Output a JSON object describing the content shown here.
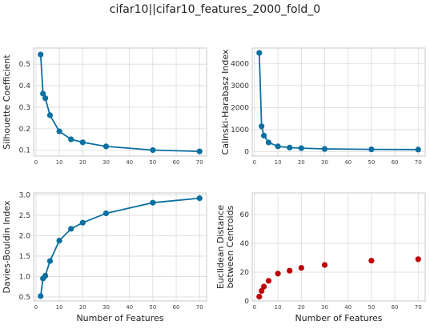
{
  "figure": {
    "title": "cifar10||cifar10_features_2000_fold_0"
  },
  "colors": {
    "line": "#0b6fa0",
    "scatter": "#c00000",
    "grid": "#d9d9d9",
    "spine": "#c8c8c8"
  },
  "chart_data": [
    {
      "type": "line",
      "ylabel": "Silhouette Coefficient",
      "xlabel": "",
      "x": [
        2,
        3,
        4,
        6,
        10,
        15,
        20,
        30,
        50,
        70
      ],
      "values": [
        0.545,
        0.363,
        0.342,
        0.263,
        0.188,
        0.151,
        0.137,
        0.118,
        0.101,
        0.095
      ],
      "xlim": [
        -1,
        73
      ],
      "ylim": [
        0.073,
        0.575
      ],
      "xticks": [
        0,
        10,
        20,
        30,
        40,
        50,
        60,
        70
      ],
      "yticks": [
        0.1,
        0.2,
        0.3,
        0.4,
        0.5
      ],
      "ytick_labels": [
        "0.1",
        "0.2",
        "0.3",
        "0.4",
        "0.5"
      ],
      "grid": true
    },
    {
      "type": "line",
      "ylabel": "Calinski-Harabasz Index",
      "xlabel": "",
      "x": [
        2,
        3,
        4,
        6,
        10,
        15,
        20,
        30,
        50,
        70
      ],
      "values": [
        4480,
        1150,
        730,
        420,
        240,
        185,
        160,
        125,
        105,
        95
      ],
      "xlim": [
        -1,
        73
      ],
      "ylim": [
        -200,
        4700
      ],
      "xticks": [
        0,
        10,
        20,
        30,
        40,
        50,
        60,
        70
      ],
      "yticks": [
        0,
        1000,
        2000,
        3000,
        4000
      ],
      "ytick_labels": [
        "0",
        "1000",
        "2000",
        "3000",
        "4000"
      ],
      "grid": true
    },
    {
      "type": "line",
      "ylabel": "Davies-Bouldin Index",
      "xlabel": "Number of Features",
      "x": [
        2,
        3,
        4,
        6,
        10,
        15,
        20,
        30,
        50,
        70
      ],
      "values": [
        0.52,
        0.95,
        1.02,
        1.38,
        1.88,
        2.17,
        2.32,
        2.55,
        2.81,
        2.92
      ],
      "xlim": [
        -1,
        73
      ],
      "ylim": [
        0.4,
        3.05
      ],
      "xticks": [
        0,
        10,
        20,
        30,
        40,
        50,
        60,
        70
      ],
      "yticks": [
        0.5,
        1.0,
        1.5,
        2.0,
        2.5,
        3.0
      ],
      "ytick_labels": [
        "0.5",
        "1.0",
        "1.5",
        "2.0",
        "2.5",
        "3.0"
      ],
      "grid": true
    },
    {
      "type": "scatter",
      "ylabel": "Euclidean Distance\nbetween Centroids",
      "xlabel": "Number of Features",
      "x": [
        2,
        3,
        4,
        6,
        10,
        15,
        20,
        30,
        50,
        70
      ],
      "values": [
        3,
        7,
        10,
        14,
        19,
        21,
        23,
        25,
        28,
        29
      ],
      "xlim": [
        -1,
        73
      ],
      "ylim": [
        0,
        75
      ],
      "xticks": [
        0,
        10,
        20,
        30,
        40,
        50,
        60,
        70
      ],
      "yticks": [
        0,
        20,
        40,
        60
      ],
      "ytick_labels": [
        "0",
        "20",
        "40",
        "60"
      ],
      "grid": true
    }
  ]
}
